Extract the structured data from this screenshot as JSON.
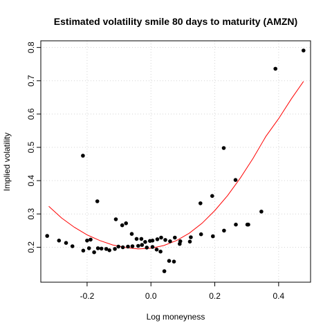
{
  "chart_data": {
    "type": "scatter",
    "title": "Estimated volatility smile 80 days to maturity (AMZN)",
    "xlabel": "Log moneyness",
    "ylabel": "Implied volatility",
    "xlim": [
      -0.345,
      0.5
    ],
    "ylim": [
      0.095,
      0.82
    ],
    "xticks": [
      -0.2,
      0.0,
      0.2,
      0.4
    ],
    "xtick_labels": [
      "-0.2",
      "0.0",
      "0.2",
      "0.4"
    ],
    "yticks": [
      0.2,
      0.3,
      0.4,
      0.5,
      0.6,
      0.7,
      0.8
    ],
    "ytick_labels": [
      "0.2",
      "0.3",
      "0.4",
      "0.5",
      "0.6",
      "0.7",
      "0.8"
    ],
    "grid": true,
    "colors": {
      "points": "#000000",
      "fit_line": "#ff0000",
      "grid": "#d3d3d3"
    },
    "series": [
      {
        "kind": "points",
        "points": [
          [
            -0.325,
            0.234
          ],
          [
            -0.288,
            0.22
          ],
          [
            -0.266,
            0.213
          ],
          [
            -0.246,
            0.203
          ],
          [
            -0.213,
            0.475
          ],
          [
            -0.212,
            0.19
          ],
          [
            -0.2,
            0.22
          ],
          [
            -0.194,
            0.197
          ],
          [
            -0.189,
            0.223
          ],
          [
            -0.178,
            0.185
          ],
          [
            -0.168,
            0.338
          ],
          [
            -0.166,
            0.197
          ],
          [
            -0.155,
            0.196
          ],
          [
            -0.14,
            0.195
          ],
          [
            -0.13,
            0.191
          ],
          [
            -0.113,
            0.195
          ],
          [
            -0.11,
            0.284
          ],
          [
            -0.102,
            0.202
          ],
          [
            -0.09,
            0.266
          ],
          [
            -0.088,
            0.2
          ],
          [
            -0.078,
            0.272
          ],
          [
            -0.072,
            0.202
          ],
          [
            -0.06,
            0.24
          ],
          [
            -0.058,
            0.203
          ],
          [
            -0.045,
            0.225
          ],
          [
            -0.04,
            0.204
          ],
          [
            -0.03,
            0.225
          ],
          [
            -0.028,
            0.207
          ],
          [
            -0.018,
            0.216
          ],
          [
            -0.013,
            0.199
          ],
          [
            -0.003,
            0.219
          ],
          [
            0.005,
            0.201
          ],
          [
            0.005,
            0.22
          ],
          [
            0.018,
            0.193
          ],
          [
            0.02,
            0.224
          ],
          [
            0.03,
            0.187
          ],
          [
            0.032,
            0.229
          ],
          [
            0.042,
            0.128
          ],
          [
            0.045,
            0.222
          ],
          [
            0.057,
            0.159
          ],
          [
            0.06,
            0.218
          ],
          [
            0.072,
            0.157
          ],
          [
            0.075,
            0.229
          ],
          [
            0.09,
            0.21
          ],
          [
            0.092,
            0.218
          ],
          [
            0.122,
            0.217
          ],
          [
            0.125,
            0.23
          ],
          [
            0.155,
            0.332
          ],
          [
            0.157,
            0.239
          ],
          [
            0.192,
            0.354
          ],
          [
            0.194,
            0.233
          ],
          [
            0.228,
            0.498
          ],
          [
            0.229,
            0.25
          ],
          [
            0.265,
            0.402
          ],
          [
            0.266,
            0.268
          ],
          [
            0.302,
            0.268
          ],
          [
            0.305,
            0.268
          ],
          [
            0.346,
            0.307
          ],
          [
            0.39,
            0.736
          ],
          [
            0.478,
            0.791
          ]
        ]
      },
      {
        "kind": "line",
        "points": [
          [
            -0.32,
            0.323
          ],
          [
            -0.28,
            0.288
          ],
          [
            -0.24,
            0.26
          ],
          [
            -0.2,
            0.237
          ],
          [
            -0.16,
            0.22
          ],
          [
            -0.12,
            0.207
          ],
          [
            -0.08,
            0.199
          ],
          [
            -0.04,
            0.195
          ],
          [
            0.0,
            0.197
          ],
          [
            0.04,
            0.205
          ],
          [
            0.08,
            0.22
          ],
          [
            0.12,
            0.242
          ],
          [
            0.16,
            0.272
          ],
          [
            0.2,
            0.31
          ],
          [
            0.24,
            0.355
          ],
          [
            0.28,
            0.408
          ],
          [
            0.32,
            0.467
          ],
          [
            0.36,
            0.533
          ],
          [
            0.4,
            0.586
          ],
          [
            0.44,
            0.646
          ],
          [
            0.478,
            0.698
          ]
        ]
      }
    ]
  }
}
